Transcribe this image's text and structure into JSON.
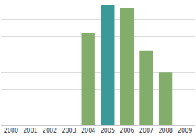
{
  "chart_data": {
    "type": "bar",
    "categories": [
      "2000",
      "2001",
      "2002",
      "2003",
      "2004",
      "2005",
      "2006",
      "2007",
      "2008",
      "2009"
    ],
    "values": [
      null,
      null,
      null,
      null,
      5.2,
      6.8,
      6.6,
      4.2,
      3.0,
      null
    ],
    "colors": [
      "#82ad6a",
      "#82ad6a",
      "#82ad6a",
      "#82ad6a",
      "#82ad6a",
      "#3a9a9a",
      "#82ad6a",
      "#82ad6a",
      "#82ad6a",
      "#82ad6a"
    ],
    "ylim": [
      0,
      7
    ],
    "yticks": [
      0,
      1,
      2,
      3,
      4,
      5,
      6,
      7
    ],
    "grid": true,
    "tick_labels": "x"
  }
}
